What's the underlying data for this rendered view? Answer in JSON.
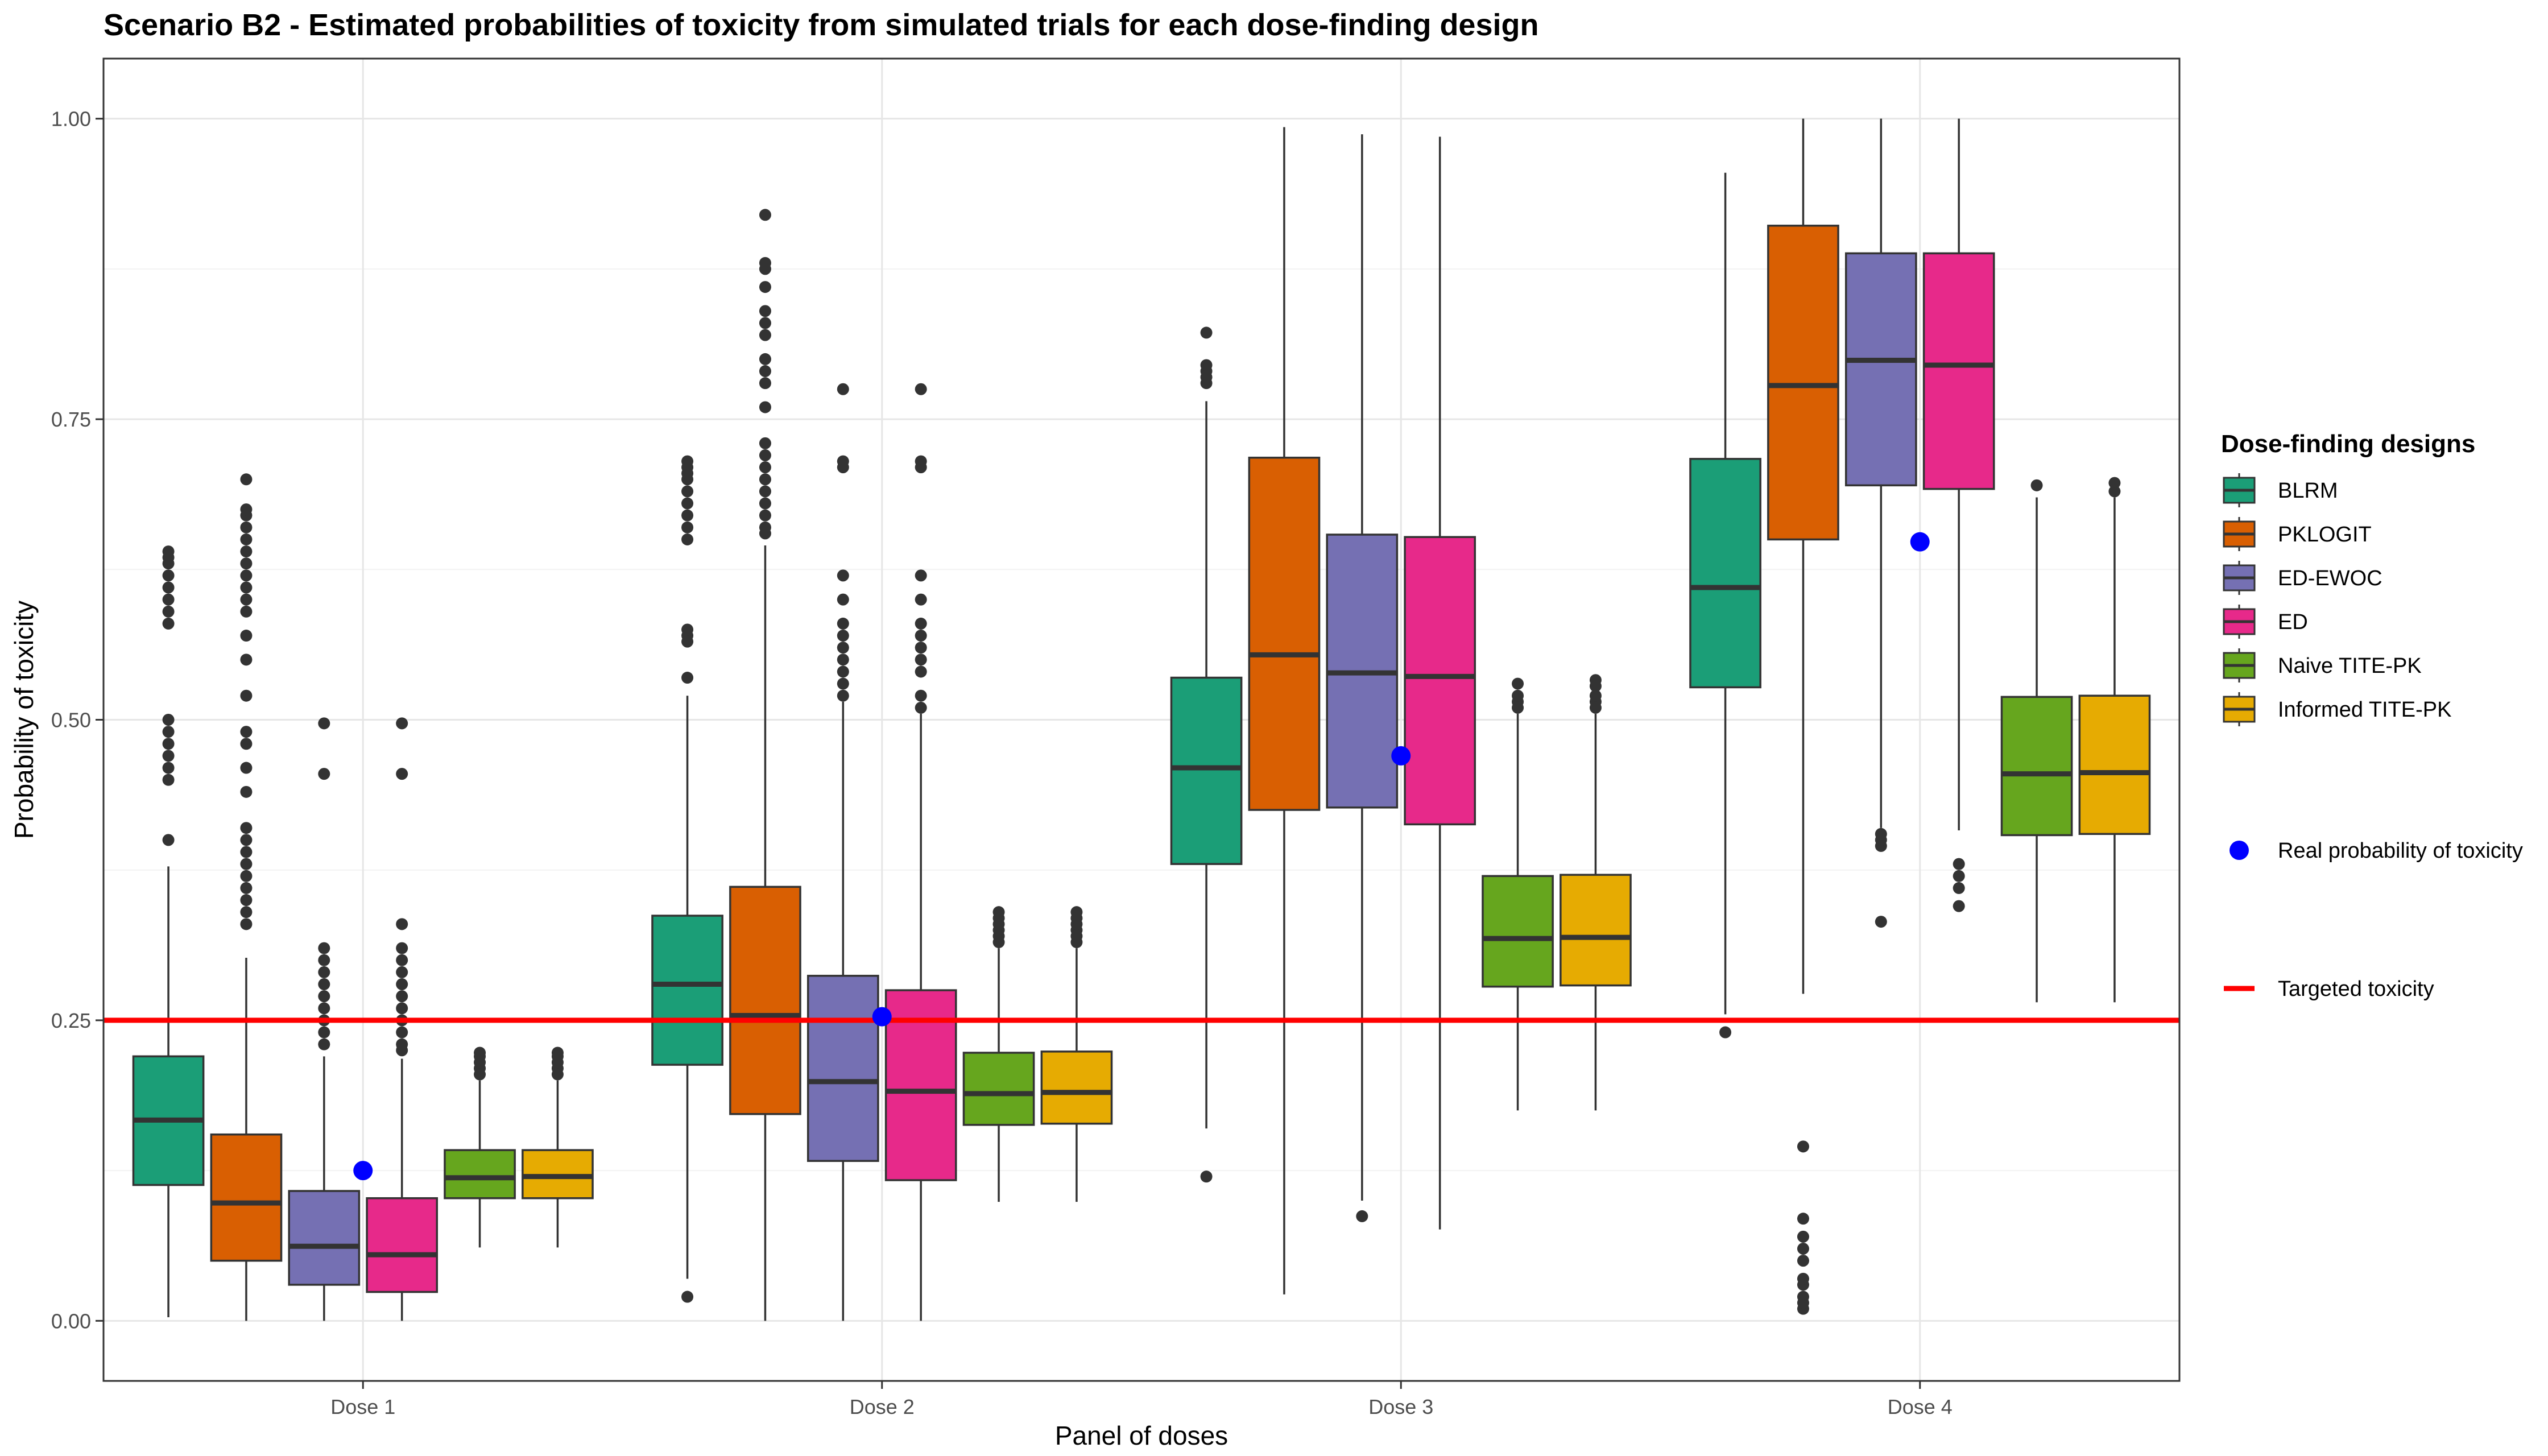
{
  "chart_data": {
    "type": "box",
    "title": "Scenario B2 - Estimated probabilities of toxicity from simulated trials for each dose-finding design",
    "xlabel": "Panel of doses",
    "ylabel": "Probability of toxicity",
    "ylim": [
      -0.05,
      1.05
    ],
    "yticks": [
      "0.00",
      "0.25",
      "0.50",
      "0.75",
      "1.00"
    ],
    "ytick_values": [
      0,
      0.25,
      0.5,
      0.75,
      1.0
    ],
    "categories": [
      "Dose 1",
      "Dose 2",
      "Dose 3",
      "Dose 4"
    ],
    "grid": true,
    "legend_title": "Dose-finding designs",
    "legend_position": "right",
    "series": [
      {
        "name": "BLRM",
        "color": "#1B9E77",
        "boxes": [
          {
            "q1": 0.113,
            "median": 0.167,
            "q3": 0.22,
            "whisker_low": 0.003,
            "whisker_high": 0.378,
            "outliers": [
              0.4,
              0.45,
              0.46,
              0.47,
              0.48,
              0.49,
              0.5,
              0.58,
              0.59,
              0.6,
              0.61,
              0.62,
              0.63,
              0.635,
              0.64
            ]
          },
          {
            "q1": 0.213,
            "median": 0.28,
            "q3": 0.337,
            "whisker_low": 0.035,
            "whisker_high": 0.52,
            "outliers": [
              0.02,
              0.535,
              0.565,
              0.57,
              0.575,
              0.65,
              0.66,
              0.67,
              0.68,
              0.69,
              0.7,
              0.705,
              0.71,
              0.715
            ]
          },
          {
            "q1": 0.38,
            "median": 0.46,
            "q3": 0.535,
            "whisker_low": 0.16,
            "whisker_high": 0.765,
            "outliers": [
              0.12,
              0.78,
              0.785,
              0.79,
              0.795,
              0.822
            ]
          },
          {
            "q1": 0.527,
            "median": 0.61,
            "q3": 0.717,
            "whisker_low": 0.255,
            "whisker_high": 0.955,
            "outliers": [
              0.24
            ]
          }
        ]
      },
      {
        "name": "PKLOGIT",
        "color": "#D95F02",
        "boxes": [
          {
            "q1": 0.05,
            "median": 0.098,
            "q3": 0.155,
            "whisker_low": 0.0,
            "whisker_high": 0.302,
            "outliers": [
              0.33,
              0.34,
              0.35,
              0.36,
              0.37,
              0.38,
              0.39,
              0.4,
              0.41,
              0.44,
              0.46,
              0.48,
              0.49,
              0.52,
              0.55,
              0.57,
              0.59,
              0.6,
              0.61,
              0.62,
              0.63,
              0.64,
              0.65,
              0.66,
              0.67,
              0.675,
              0.7
            ]
          },
          {
            "q1": 0.172,
            "median": 0.254,
            "q3": 0.361,
            "whisker_low": 0.0,
            "whisker_high": 0.645,
            "outliers": [
              0.655,
              0.66,
              0.67,
              0.68,
              0.69,
              0.7,
              0.71,
              0.72,
              0.73,
              0.76,
              0.78,
              0.79,
              0.8,
              0.82,
              0.83,
              0.84,
              0.86,
              0.875,
              0.88,
              0.92
            ]
          },
          {
            "q1": 0.425,
            "median": 0.554,
            "q3": 0.718,
            "whisker_low": 0.022,
            "whisker_high": 0.993,
            "outliers": []
          },
          {
            "q1": 0.65,
            "median": 0.778,
            "q3": 0.911,
            "whisker_low": 0.272,
            "whisker_high": 1.0,
            "outliers": [
              0.01,
              0.015,
              0.02,
              0.03,
              0.035,
              0.05,
              0.06,
              0.07,
              0.085,
              0.145
            ]
          }
        ]
      },
      {
        "name": "ED-EWOC",
        "color": "#7570B3",
        "boxes": [
          {
            "q1": 0.03,
            "median": 0.062,
            "q3": 0.108,
            "whisker_low": 0.0,
            "whisker_high": 0.22,
            "outliers": [
              0.23,
              0.24,
              0.25,
              0.26,
              0.27,
              0.28,
              0.29,
              0.3,
              0.31,
              0.455,
              0.497
            ]
          },
          {
            "q1": 0.133,
            "median": 0.199,
            "q3": 0.287,
            "whisker_low": 0.0,
            "whisker_high": 0.515,
            "outliers": [
              0.52,
              0.53,
              0.54,
              0.55,
              0.56,
              0.57,
              0.58,
              0.6,
              0.62,
              0.71,
              0.715,
              0.775
            ]
          },
          {
            "q1": 0.427,
            "median": 0.539,
            "q3": 0.654,
            "whisker_low": 0.1,
            "whisker_high": 0.987,
            "outliers": [
              0.087
            ]
          },
          {
            "q1": 0.695,
            "median": 0.799,
            "q3": 0.888,
            "whisker_low": 0.41,
            "whisker_high": 1.0,
            "outliers": [
              0.332,
              0.395,
              0.4,
              0.405
            ]
          }
        ]
      },
      {
        "name": "ED",
        "color": "#E7298A",
        "boxes": [
          {
            "q1": 0.024,
            "median": 0.055,
            "q3": 0.102,
            "whisker_low": 0.0,
            "whisker_high": 0.218,
            "outliers": [
              0.225,
              0.23,
              0.24,
              0.25,
              0.26,
              0.27,
              0.28,
              0.29,
              0.3,
              0.31,
              0.33,
              0.455,
              0.497
            ]
          },
          {
            "q1": 0.117,
            "median": 0.191,
            "q3": 0.275,
            "whisker_low": 0.0,
            "whisker_high": 0.505,
            "outliers": [
              0.51,
              0.52,
              0.54,
              0.55,
              0.56,
              0.57,
              0.58,
              0.6,
              0.62,
              0.71,
              0.715,
              0.775
            ]
          },
          {
            "q1": 0.413,
            "median": 0.536,
            "q3": 0.652,
            "whisker_low": 0.076,
            "whisker_high": 0.985,
            "outliers": []
          },
          {
            "q1": 0.692,
            "median": 0.795,
            "q3": 0.888,
            "whisker_low": 0.408,
            "whisker_high": 1.0,
            "outliers": [
              0.345,
              0.36,
              0.37,
              0.38
            ]
          }
        ]
      },
      {
        "name": "Naive TITE-PK",
        "color": "#66A61E",
        "boxes": [
          {
            "q1": 0.102,
            "median": 0.119,
            "q3": 0.142,
            "whisker_low": 0.061,
            "whisker_high": 0.2,
            "outliers": [
              0.205,
              0.21,
              0.215,
              0.22,
              0.223
            ]
          },
          {
            "q1": 0.163,
            "median": 0.189,
            "q3": 0.223,
            "whisker_low": 0.099,
            "whisker_high": 0.31,
            "outliers": [
              0.315,
              0.32,
              0.325,
              0.33,
              0.335,
              0.34
            ]
          },
          {
            "q1": 0.278,
            "median": 0.318,
            "q3": 0.37,
            "whisker_low": 0.175,
            "whisker_high": 0.505,
            "outliers": [
              0.51,
              0.515,
              0.52,
              0.53
            ]
          },
          {
            "q1": 0.404,
            "median": 0.455,
            "q3": 0.519,
            "whisker_low": 0.265,
            "whisker_high": 0.685,
            "outliers": [
              0.695
            ]
          }
        ]
      },
      {
        "name": "Informed TITE-PK",
        "color": "#E6AB02",
        "boxes": [
          {
            "q1": 0.102,
            "median": 0.12,
            "q3": 0.142,
            "whisker_low": 0.061,
            "whisker_high": 0.2,
            "outliers": [
              0.205,
              0.21,
              0.215,
              0.22,
              0.223
            ]
          },
          {
            "q1": 0.164,
            "median": 0.19,
            "q3": 0.224,
            "whisker_low": 0.099,
            "whisker_high": 0.31,
            "outliers": [
              0.315,
              0.32,
              0.325,
              0.33,
              0.335,
              0.34
            ]
          },
          {
            "q1": 0.279,
            "median": 0.319,
            "q3": 0.371,
            "whisker_low": 0.175,
            "whisker_high": 0.505,
            "outliers": [
              0.51,
              0.515,
              0.52,
              0.528,
              0.533
            ]
          },
          {
            "q1": 0.405,
            "median": 0.456,
            "q3": 0.52,
            "whisker_low": 0.265,
            "whisker_high": 0.685,
            "outliers": [
              0.69,
              0.697
            ]
          }
        ]
      }
    ],
    "real_probability": {
      "name": "Real probability of toxicity",
      "color": "#0000FF",
      "values": [
        0.125,
        0.253,
        0.47,
        0.648
      ]
    },
    "target": {
      "name": "Targeted toxicity",
      "color": "#FF0000",
      "value": 0.25
    }
  }
}
